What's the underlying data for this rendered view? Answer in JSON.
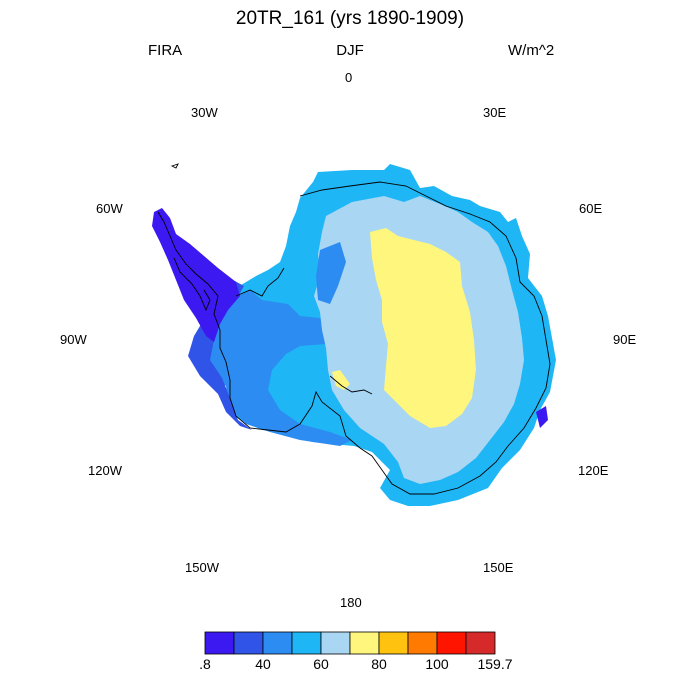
{
  "header": {
    "title": "20TR_161 (yrs 1890-1909)",
    "left": "FIRA",
    "center": "DJF",
    "right": "W/m^2"
  },
  "longitude_labels": {
    "n0": "0",
    "e30": "30E",
    "e60": "60E",
    "e90": "90E",
    "e120": "120E",
    "e150": "150E",
    "s180": "180",
    "w150": "150W",
    "w120": "120W",
    "w90": "90W",
    "w60": "60W",
    "w30": "30W"
  },
  "colorbar": {
    "colors": [
      "#3b19f0",
      "#3054e8",
      "#2c8cf2",
      "#1fb6f6",
      "#a9d6f3",
      "#fff67d",
      "#ffc30f",
      "#ff7a00",
      "#ff1400",
      "#d62a2a"
    ],
    "labels": [
      ".8",
      "40",
      "60",
      "80",
      "100",
      "159.7"
    ]
  },
  "legend_colors": {
    "deep_blue": "#3b19f0",
    "blue": "#3054e8",
    "mid_blue": "#2c8cf2",
    "light_blue": "#1fb6f6",
    "pale_blue": "#a9d6f3",
    "yellow": "#fff67d"
  }
}
